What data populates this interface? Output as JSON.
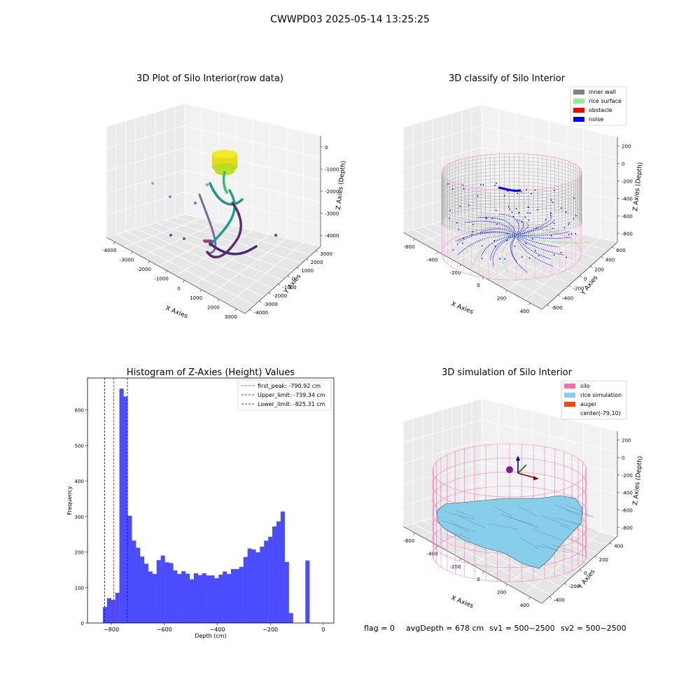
{
  "figure_title": "CWWPD03 2025-05-14 13:25:25",
  "status_line": {
    "flag": "flag = 0",
    "avg_depth": "avgDepth = 678 cm",
    "sv1": "sv1 = 500~2500",
    "sv2": "sv2 = 500~2500"
  },
  "colors": {
    "hist_bar": "#4c4cff",
    "first_peak": "#ff0000",
    "limits": "#0000cc",
    "inner_wall": "#808080",
    "rice_surface": "#90ee90",
    "obstacle": "#ff0000",
    "noise": "#0000ff",
    "silo": "#ff69b4",
    "rice_simulation": "#87ceeb",
    "auger": "#ff4500"
  },
  "chart_data": [
    {
      "id": "raw",
      "type": "scatter",
      "projection": "3d",
      "title": "3D Plot of Silo Interior(row data)",
      "xlabel": "X Axies",
      "ylabel": "Y Axies",
      "zlabel": "Z Axies (Depth)",
      "xlim": [
        -4000,
        3000
      ],
      "ylim": [
        -4000,
        3000
      ],
      "zlim": [
        -4500,
        0
      ],
      "xticks": [
        "-4000",
        "-3000",
        "-2000",
        "-1000",
        "0",
        "1000",
        "2000",
        "3000"
      ],
      "yticks": [
        "-4000",
        "-3000",
        "-2000",
        "-1000",
        "0",
        "1000",
        "2000",
        "3000"
      ],
      "zticks": [
        "0",
        "-1000",
        "-2000",
        "-3000",
        "-4000"
      ]
    },
    {
      "id": "classify",
      "type": "scatter",
      "projection": "3d",
      "title": "3D classify of Silo Interior",
      "xlabel": "X Axies",
      "ylabel": "Y Axies",
      "zlabel": "Z Axies (Depth)",
      "xlim": [
        -700,
        500
      ],
      "ylim": [
        -600,
        600
      ],
      "zlim": [
        -900,
        300
      ],
      "xticks": [
        "-600",
        "-400",
        "-200",
        "0",
        "200",
        "400"
      ],
      "yticks": [
        "-600",
        "-400",
        "-200",
        "0",
        "200",
        "400",
        "600"
      ],
      "zticks": [
        "200",
        "0",
        "-200",
        "-400",
        "-600",
        "-800"
      ],
      "legend": [
        "inner wall",
        "rice surface",
        "obstacle",
        "noise"
      ],
      "legend_loc": "upper right"
    },
    {
      "id": "histogram",
      "type": "bar",
      "title": "Histogram of Z-Axies (Height) Values",
      "xlabel": "Depth (cm)",
      "ylabel": "Frequency",
      "xlim": [
        -890,
        40
      ],
      "ylim": [
        0,
        690
      ],
      "xticks": [
        -800,
        -600,
        -400,
        -200,
        0
      ],
      "yticks": [
        0,
        100,
        200,
        300,
        400,
        500,
        600
      ],
      "bin_width": 15.6,
      "bin_start": -832,
      "values": [
        45,
        70,
        65,
        85,
        660,
        638,
        302,
        232,
        212,
        187,
        167,
        145,
        138,
        177,
        190,
        171,
        169,
        148,
        138,
        146,
        139,
        123,
        140,
        135,
        140,
        134,
        134,
        126,
        136,
        145,
        138,
        152,
        152,
        158,
        186,
        210,
        207,
        199,
        215,
        232,
        243,
        272,
        286,
        314,
        172,
        28,
        0,
        0,
        0,
        176
      ],
      "vlines": [
        {
          "label": "first_peak: -790.92 cm",
          "x": -790.92,
          "style": "red"
        },
        {
          "label": "Upper_limit: -739.34 cm",
          "x": -739.34,
          "style": "blue"
        },
        {
          "label": "Lower_limit: -825.31 cm",
          "x": -825.31,
          "style": "blue"
        }
      ],
      "legend_loc": "upper right"
    },
    {
      "id": "simulation",
      "type": "surface",
      "projection": "3d",
      "title": "3D simulation of Silo Interior",
      "xlabel": "X Axies",
      "ylabel": "Y Axies",
      "zlabel": "Z Axies (Depth)",
      "xlim": [
        -700,
        500
      ],
      "ylim": [
        -600,
        600
      ],
      "zlim": [
        -900,
        300
      ],
      "xticks": [
        "-600",
        "-400",
        "-200",
        "0",
        "200",
        "400"
      ],
      "yticks": [
        "-400",
        "-200",
        "0",
        "200",
        "400"
      ],
      "zticks": [
        "200",
        "0",
        "-200",
        "-400",
        "-600",
        "-800"
      ],
      "legend": [
        "silo",
        "rice simulation",
        "auger",
        "center(-79,10)"
      ],
      "legend_loc": "upper right"
    }
  ]
}
